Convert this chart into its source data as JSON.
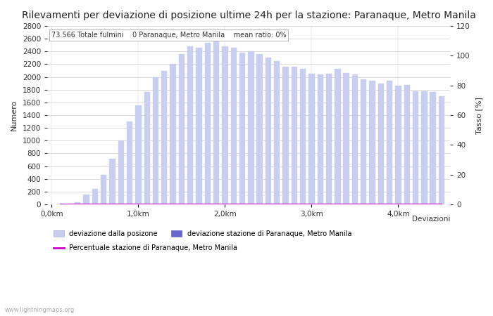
{
  "title": "Rilevamenti per deviazione di posizione ultime 24h per la stazione: Paranaque, Metro Manila",
  "subtitle": "73.566 Totale fulmini    0 Paranaque, Metro Manila    mean ratio: 0%",
  "ylabel_left": "Numero",
  "ylabel_right": "Tasso [%]",
  "xlabel": "Deviazioni",
  "ylim_left": [
    0,
    2800
  ],
  "ylim_right": [
    0,
    120
  ],
  "yticks_left": [
    0,
    200,
    400,
    600,
    800,
    1000,
    1200,
    1400,
    1600,
    1800,
    2000,
    2200,
    2400,
    2600,
    2800
  ],
  "yticks_right": [
    0,
    20,
    40,
    60,
    80,
    100,
    120
  ],
  "bar_width": 0.08,
  "bar_color": "#c8cef0",
  "bar_color2": "#6666cc",
  "line_color": "#cc00cc",
  "background_color": "#ffffff",
  "grid_color": "#cccccc",
  "watermark": "www.lightningmaps.org",
  "legend_label1": "deviazione dalla posizone",
  "legend_label2": "deviazione stazione di Paranaque, Metro Manila",
  "legend_label3": "Percentuale stazione di Paranaque, Metro Manila",
  "xtick_labels": [
    "0,0km",
    "1,0km",
    "2,0km",
    "3,0km",
    "4,0km"
  ],
  "xtick_positions": [
    0,
    1.0,
    2.0,
    3.0,
    4.0
  ],
  "bar_positions": [
    0.1,
    0.2,
    0.3,
    0.4,
    0.5,
    0.6,
    0.7,
    0.8,
    0.9,
    1.0,
    1.1,
    1.2,
    1.3,
    1.4,
    1.5,
    1.6,
    1.7,
    1.8,
    1.9,
    2.0,
    2.1,
    2.2,
    2.3,
    2.4,
    2.5,
    2.6,
    2.7,
    2.8,
    2.9,
    3.0,
    3.1,
    3.2,
    3.3,
    3.4,
    3.5,
    3.6,
    3.7,
    3.8,
    3.9,
    4.0,
    4.1,
    4.2,
    4.3,
    4.4,
    4.5
  ],
  "bar_values": [
    0,
    10,
    30,
    150,
    240,
    460,
    720,
    1000,
    1300,
    1560,
    1760,
    2000,
    2100,
    2200,
    2360,
    2480,
    2460,
    2540,
    2600,
    2480,
    2460,
    2380,
    2400,
    2360,
    2300,
    2250,
    2160,
    2160,
    2130,
    2050,
    2040,
    2050,
    2130,
    2060,
    2040,
    1960,
    1940,
    1900,
    1940,
    1860,
    1880,
    1780,
    1780,
    1760,
    1700
  ],
  "bar_values2": [
    0,
    0,
    0,
    0,
    0,
    0,
    0,
    0,
    0,
    0,
    0,
    0,
    0,
    0,
    0,
    0,
    0,
    0,
    0,
    0,
    0,
    0,
    0,
    0,
    0,
    0,
    0,
    0,
    0,
    0,
    0,
    0,
    0,
    0,
    0,
    0,
    0,
    0,
    0,
    0,
    0,
    0,
    0,
    0,
    0
  ],
  "line_values": [
    0,
    0,
    0,
    0,
    0,
    0,
    0,
    0,
    0,
    0,
    0,
    0,
    0,
    0,
    0,
    0,
    0,
    0,
    0,
    0,
    0,
    0,
    0,
    0,
    0,
    0,
    0,
    0,
    0,
    0,
    0,
    0,
    0,
    0,
    0,
    0,
    0,
    0,
    0,
    0,
    0,
    0,
    0,
    0,
    0
  ],
  "title_fontsize": 10,
  "axis_fontsize": 8,
  "tick_fontsize": 7.5
}
